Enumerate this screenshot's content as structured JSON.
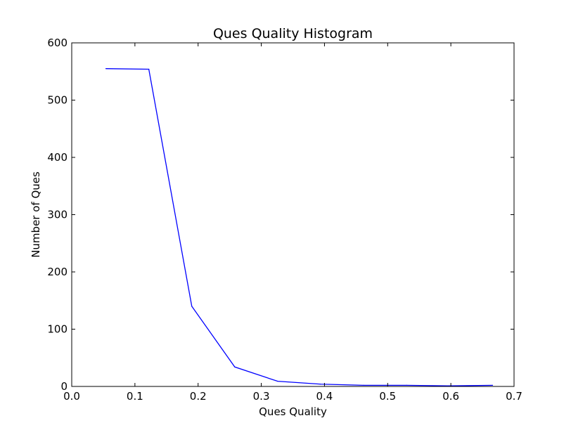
{
  "chart_data": {
    "type": "line",
    "title": "Ques Quality Histogram",
    "xlabel": "Ques Quality",
    "ylabel": "Number of Ques",
    "xlim": [
      0.0,
      0.7
    ],
    "ylim": [
      0,
      600
    ],
    "xticks": [
      "0.0",
      "0.1",
      "0.2",
      "0.3",
      "0.4",
      "0.5",
      "0.6",
      "0.7"
    ],
    "yticks": [
      "0",
      "100",
      "200",
      "300",
      "400",
      "500",
      "600"
    ],
    "grid": false,
    "series": [
      {
        "color": "#0000ff",
        "x": [
          0.054,
          0.122,
          0.19,
          0.258,
          0.326,
          0.394,
          0.462,
          0.53,
          0.598,
          0.666
        ],
        "y": [
          555,
          554,
          140,
          34,
          9,
          4,
          2,
          2,
          1,
          2
        ]
      }
    ]
  }
}
